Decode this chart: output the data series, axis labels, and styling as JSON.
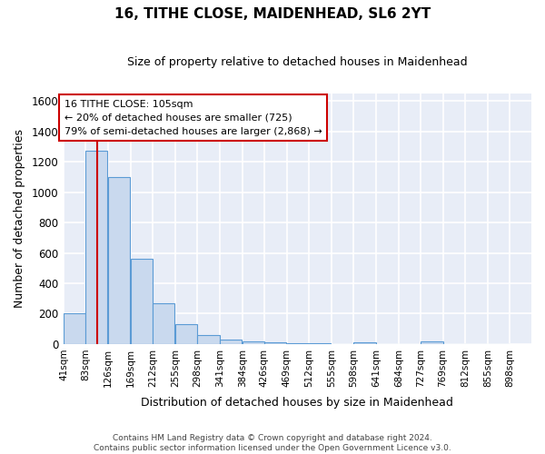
{
  "title": "16, TITHE CLOSE, MAIDENHEAD, SL6 2YT",
  "subtitle": "Size of property relative to detached houses in Maidenhead",
  "xlabel": "Distribution of detached houses by size in Maidenhead",
  "ylabel": "Number of detached properties",
  "bin_edges": [
    41,
    83,
    126,
    169,
    212,
    255,
    298,
    341,
    384,
    426,
    469,
    512,
    555,
    598,
    641,
    684,
    727,
    769,
    812,
    855,
    898
  ],
  "bar_heights": [
    200,
    1275,
    1100,
    560,
    270,
    130,
    60,
    30,
    20,
    10,
    5,
    3,
    2,
    10,
    2,
    2,
    18,
    2,
    2,
    2
  ],
  "bar_color": "#c9d9ee",
  "bar_edge_color": "#5b9bd5",
  "property_size": 105,
  "property_line_color": "#cc0000",
  "annotation_text": "16 TITHE CLOSE: 105sqm\n← 20% of detached houses are smaller (725)\n79% of semi-detached houses are larger (2,868) →",
  "annotation_box_color": "white",
  "annotation_box_edge_color": "#cc0000",
  "ylim": [
    0,
    1650
  ],
  "yticks": [
    0,
    200,
    400,
    600,
    800,
    1000,
    1200,
    1400,
    1600
  ],
  "bg_color": "#e8edf7",
  "grid_color": "white",
  "footer_line1": "Contains HM Land Registry data © Crown copyright and database right 2024.",
  "footer_line2": "Contains public sector information licensed under the Open Government Licence v3.0."
}
